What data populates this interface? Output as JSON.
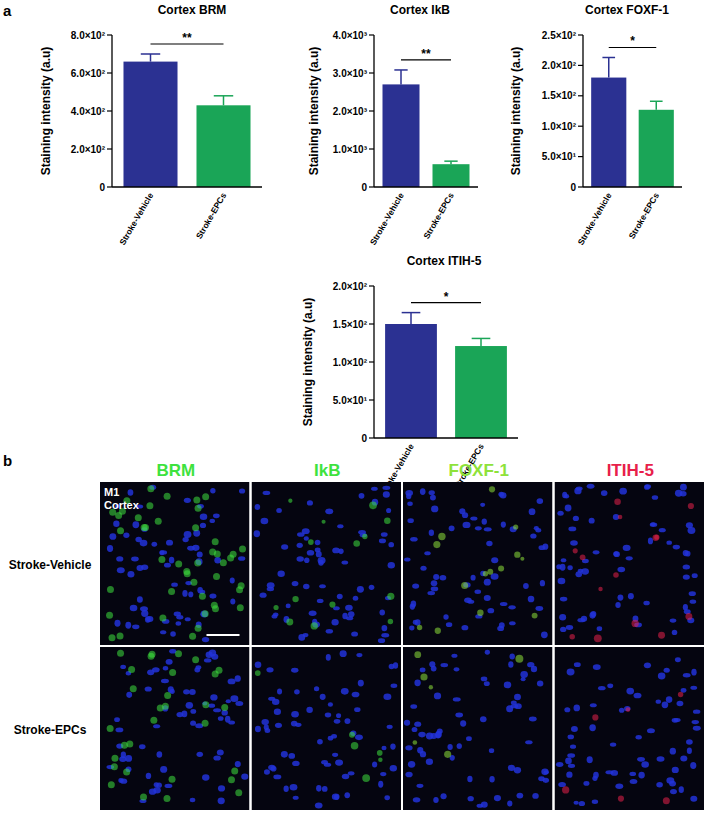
{
  "chart_data": [
    {
      "type": "bar",
      "title": "Cortex BRM",
      "y_label": "Staining intensity (a.u)",
      "categories": [
        "Stroke-Vehicle",
        "Stroke-EPCs"
      ],
      "values": [
        660,
        430
      ],
      "errors": [
        40,
        50
      ],
      "colors": [
        "#2b3192",
        "#1aa557"
      ],
      "annotation": "**",
      "ylim": [
        0,
        800
      ],
      "yticks": [
        0,
        {
          "value": 200,
          "label": "2.0×10²"
        },
        {
          "value": 400,
          "label": "4.0×10²"
        },
        {
          "value": 600,
          "label": "6.0×10²"
        },
        {
          "value": 800,
          "label": "8.0×10²"
        }
      ]
    },
    {
      "type": "bar",
      "title": "Cortex IkB",
      "y_label": "Staining intensity (a.u)",
      "categories": [
        "Stroke-Vehicle",
        "Stroke-EPCs"
      ],
      "values": [
        2700,
        600
      ],
      "errors": [
        380,
        80
      ],
      "colors": [
        "#2b3192",
        "#1aa557"
      ],
      "annotation": "**",
      "ylim": [
        0,
        4000
      ],
      "yticks": [
        0,
        {
          "value": 1000,
          "label": "1.0×10³"
        },
        {
          "value": 2000,
          "label": "2.0×10³"
        },
        {
          "value": 3000,
          "label": "3.0×10³"
        },
        {
          "value": 4000,
          "label": "4.0×10³"
        }
      ]
    },
    {
      "type": "bar",
      "title": "Cortex FOXF-1",
      "y_label": "Staining intensity (a.u)",
      "categories": [
        "Stroke-Vehicle",
        "Stroke-EPCs"
      ],
      "values": [
        180,
        127
      ],
      "errors": [
        33,
        14
      ],
      "colors": [
        "#2b3192",
        "#1aa557"
      ],
      "annotation": "*",
      "ylim": [
        0,
        250
      ],
      "yticks": [
        0,
        {
          "value": 50,
          "label": "5.0×10¹"
        },
        {
          "value": 100,
          "label": "1.0×10²"
        },
        {
          "value": 150,
          "label": "1.5×10²"
        },
        {
          "value": 200,
          "label": "2.0×10²"
        },
        {
          "value": 250,
          "label": "2.5×10²"
        }
      ]
    },
    {
      "type": "bar",
      "title": "Cortex ITIH-5",
      "y_label": "Staining intensity (a.u)",
      "categories": [
        "Stroke-Vehicle",
        "Stroke-EPCs"
      ],
      "values": [
        150,
        121
      ],
      "errors": [
        15,
        10
      ],
      "colors": [
        "#2b3192",
        "#1aa557"
      ],
      "annotation": "*",
      "ylim": [
        0,
        200
      ],
      "yticks": [
        0,
        {
          "value": 50,
          "label": "5.0×10¹"
        },
        {
          "value": 100,
          "label": "1.0×10²"
        },
        {
          "value": 150,
          "label": "1.5×10²"
        },
        {
          "value": 200,
          "label": "2.0×10²"
        }
      ]
    }
  ],
  "panel_labels": [
    "a",
    "b"
  ],
  "images": {
    "columns": [
      {
        "label": "BRM",
        "color": "#3ee23e"
      },
      {
        "label": "IkB",
        "color": "#3ee23e"
      },
      {
        "label": "FOXF-1",
        "color": "#8ee23a"
      },
      {
        "label": "ITIH-5",
        "color": "#e8204a"
      }
    ],
    "rows": [
      "Stroke-Vehicle",
      "Stroke-EPCs"
    ],
    "inset": [
      "M1",
      "Cortex"
    ]
  }
}
